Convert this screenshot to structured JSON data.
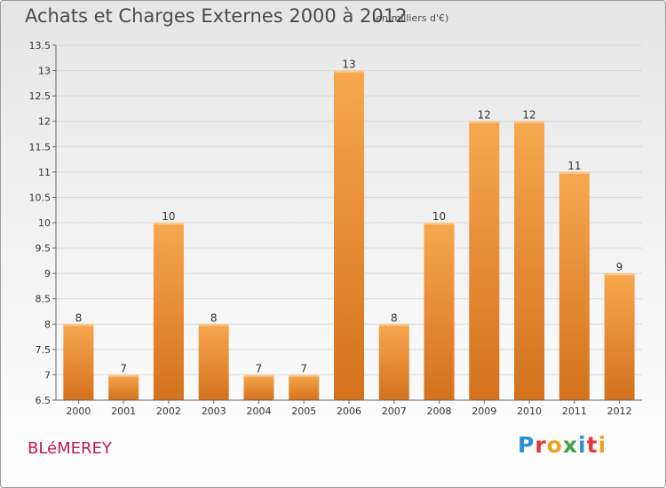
{
  "title": "Achats et Charges Externes 2000 à 2012",
  "unit": "(en milliers d'€)",
  "commune": "BLéMEREY",
  "brand": "Proxiti",
  "colors": {
    "bar_light": "#f7a84f",
    "bar_dark": "#d4711c",
    "title": "#4a4a4a",
    "commune": "#c2185b"
  },
  "chart_data": {
    "type": "bar",
    "categories": [
      "2000",
      "2001",
      "2002",
      "2003",
      "2004",
      "2005",
      "2006",
      "2007",
      "2008",
      "2009",
      "2010",
      "2011",
      "2012"
    ],
    "values": [
      8,
      7,
      10,
      8,
      7,
      7,
      13,
      8,
      10,
      12,
      12,
      11,
      9
    ],
    "value_labels": [
      "8",
      "7",
      "10",
      "8",
      "7",
      "7",
      "13",
      "8",
      "10",
      "12",
      "12",
      "11",
      "9"
    ],
    "y_ticks": [
      "6.5",
      "7",
      "7.5",
      "8",
      "8.5",
      "9",
      "9.5",
      "10",
      "10.5",
      "11",
      "11.5",
      "12",
      "12.5",
      "13",
      "13.5"
    ],
    "ylim": [
      6.5,
      13.5
    ],
    "grid": true
  }
}
